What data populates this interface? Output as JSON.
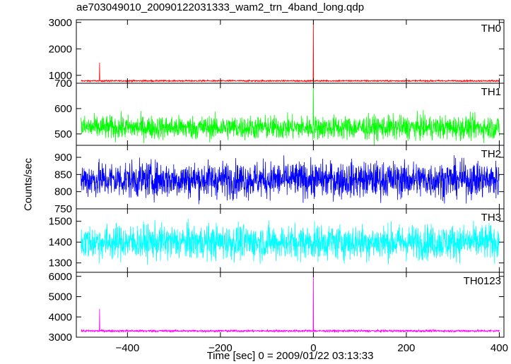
{
  "chart_data": {
    "type": "line",
    "title": "ae703049010_20090122031333_wam2_trn_4band_long.qdp",
    "xlabel": "Time [sec] 0 = 2009/01/22 03:13:33",
    "ylabel": "Counts/sec",
    "xlim": [
      -510,
      410
    ],
    "x_ticks": [
      -400,
      -200,
      0,
      200,
      400
    ],
    "x_tick_labels": [
      "−400",
      "−200",
      "0",
      "200",
      "400"
    ],
    "x_range": [
      -500,
      400
    ],
    "panels": [
      {
        "name": "TH0",
        "color": "#ff0000",
        "ylim": [
          700,
          3100
        ],
        "y_ticks": [
          1000,
          2000,
          3000
        ],
        "baseline": 790,
        "noise": 15,
        "spikes": [
          {
            "x": -460,
            "y": 1480
          },
          {
            "x": 0,
            "y": 3100
          }
        ]
      },
      {
        "name": "TH1",
        "color": "#00ff00",
        "ylim": [
          455,
          700
        ],
        "y_ticks": [
          500,
          600,
          700
        ],
        "baseline": 525,
        "noise": 25,
        "spikes": [
          {
            "x": 0,
            "y": 700
          }
        ]
      },
      {
        "name": "TH2",
        "color": "#0000ff",
        "ylim": [
          750,
          935
        ],
        "y_ticks": [
          750,
          800,
          850,
          900
        ],
        "baseline": 835,
        "noise": 28,
        "spikes": []
      },
      {
        "name": "TH3",
        "color": "#00ffff",
        "ylim": [
          1255,
          1560
        ],
        "y_ticks": [
          1300,
          1400,
          1500
        ],
        "baseline": 1400,
        "noise": 45,
        "spikes": []
      },
      {
        "name": "TH0123",
        "color": "#ff00ff",
        "ylim": [
          3000,
          6200
        ],
        "y_ticks": [
          3000,
          4000,
          5000,
          6000
        ],
        "baseline": 3310,
        "noise": 30,
        "spikes": [
          {
            "x": -460,
            "y": 4400
          },
          {
            "x": 0,
            "y": 6200
          }
        ]
      }
    ]
  }
}
